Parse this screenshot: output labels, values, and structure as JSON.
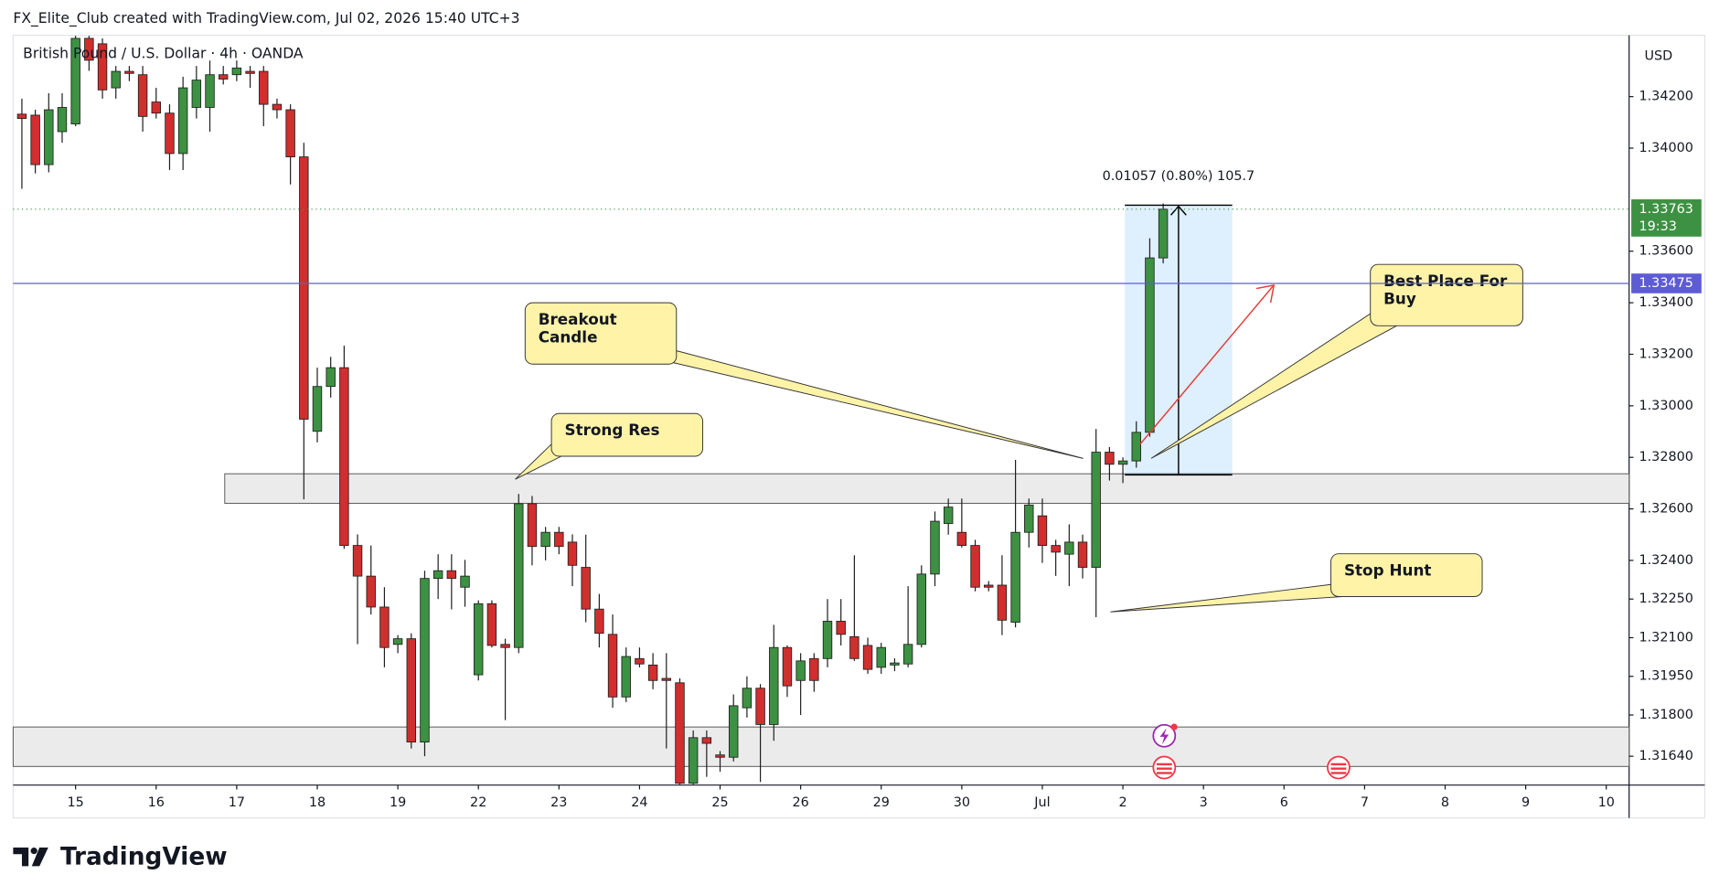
{
  "header": {
    "credit": "FX_Elite_Club created with TradingView.com, Jul 02, 2026 15:40 UTC+3"
  },
  "footer": {
    "logo": "TradingView"
  },
  "chart_data": {
    "type": "candlestick",
    "title": "British Pound / U.S. Dollar · 4h · OANDA",
    "currency": "USD",
    "up_color": "#3d9142",
    "down_color": "#d12e2e",
    "border_color": "#1e1e1e",
    "open": [
      1.34132,
      1.34128,
      1.33936,
      1.34064,
      1.34094,
      1.34426,
      1.34405,
      1.34234,
      1.34298,
      1.34285,
      1.34179,
      1.34136,
      1.33979,
      1.34158,
      1.34158,
      1.34285,
      1.34285,
      1.34298,
      1.34298,
      1.3417,
      1.34149,
      1.33966,
      1.32901,
      1.33075,
      1.33148,
      1.32458,
      1.32339,
      1.32219,
      1.32074,
      1.32096,
      1.31695,
      1.3233,
      1.3236,
      1.32296,
      1.31956,
      1.32232,
      1.32074,
      1.32062,
      1.3262,
      1.32454,
      1.32509,
      1.32471,
      1.32373,
      1.32211,
      1.32113,
      1.3187,
      1.32019,
      1.31994,
      1.31942,
      1.31925,
      1.31535,
      1.31712,
      1.31645,
      1.31636,
      1.31828,
      1.31904,
      1.31763,
      1.32062,
      1.31934,
      1.32019,
      1.32019,
      1.32164,
      1.32104,
      1.3207,
      1.31985,
      1.31994,
      1.31998,
      1.32074,
      1.32347,
      1.32543,
      1.32509,
      1.32458,
      1.32304,
      1.32304,
      1.3216,
      1.32509,
      1.32573,
      1.32458,
      1.32424,
      1.32471,
      1.32373,
      1.3282,
      1.32773,
      1.32786,
      1.32897,
      1.33574
    ],
    "high": [
      1.34192,
      1.34149,
      1.34213,
      1.34213,
      1.34436,
      1.34436,
      1.34426,
      1.34319,
      1.34319,
      1.34319,
      1.34234,
      1.3417,
      1.34277,
      1.34319,
      1.3434,
      1.34319,
      1.3434,
      1.34319,
      1.34319,
      1.34192,
      1.3417,
      1.34021,
      1.33148,
      1.3319,
      1.33233,
      1.32501,
      1.32458,
      1.32296,
      1.3211,
      1.32117,
      1.3236,
      1.32424,
      1.32424,
      1.32402,
      1.32245,
      1.32245,
      1.32096,
      1.32658,
      1.3265,
      1.3253,
      1.3253,
      1.32501,
      1.325,
      1.3227,
      1.3219,
      1.32062,
      1.32062,
      1.3204,
      1.3204,
      1.31942,
      1.3174,
      1.3174,
      1.3166,
      1.3188,
      1.3195,
      1.3192,
      1.3215,
      1.3207,
      1.3204,
      1.3204,
      1.3225,
      1.3225,
      1.3242,
      1.321,
      1.3208,
      1.3202,
      1.323,
      1.32381,
      1.3259,
      1.3264,
      1.3264,
      1.3248,
      1.3232,
      1.3242,
      1.3279,
      1.3264,
      1.3264,
      1.3248,
      1.3254,
      1.325,
      1.3291,
      1.3284,
      1.328,
      1.3294,
      1.3365,
      1.33785
    ],
    "low": [
      1.33842,
      1.33902,
      1.33906,
      1.34021,
      1.34085,
      1.343,
      1.34192,
      1.34192,
      1.3426,
      1.34064,
      1.34115,
      1.33915,
      1.33915,
      1.34115,
      1.34064,
      1.34247,
      1.3426,
      1.34234,
      1.34085,
      1.34115,
      1.33859,
      1.32637,
      1.32858,
      1.33032,
      1.32445,
      1.32075,
      1.3219,
      1.31985,
      1.3204,
      1.3167,
      1.3164,
      1.3225,
      1.3221,
      1.3222,
      1.31934,
      1.32062,
      1.3178,
      1.3204,
      1.32381,
      1.324,
      1.32424,
      1.323,
      1.3216,
      1.32062,
      1.31828,
      1.3185,
      1.31985,
      1.319,
      1.3167,
      1.3153,
      1.3153,
      1.3156,
      1.3158,
      1.3162,
      1.3179,
      1.3154,
      1.317,
      1.3187,
      1.318,
      1.3189,
      1.31985,
      1.3207,
      1.3201,
      1.3196,
      1.3196,
      1.3197,
      1.31985,
      1.32062,
      1.323,
      1.325,
      1.3245,
      1.3228,
      1.3228,
      1.3211,
      1.3214,
      1.3245,
      1.3239,
      1.3234,
      1.323,
      1.3233,
      1.3218,
      1.3271,
      1.327,
      1.3276,
      1.3288,
      1.33553
    ],
    "close": [
      1.34115,
      1.33936,
      1.34149,
      1.34158,
      1.34426,
      1.34341,
      1.34226,
      1.34298,
      1.3429,
      1.34123,
      1.34136,
      1.33979,
      1.34234,
      1.34264,
      1.34285,
      1.34268,
      1.34311,
      1.3429,
      1.3417,
      1.34149,
      1.33966,
      1.32948,
      1.33075,
      1.33148,
      1.32458,
      1.32339,
      1.32219,
      1.32062,
      1.32096,
      1.31695,
      1.3233,
      1.3236,
      1.3233,
      1.32339,
      1.32232,
      1.3207,
      1.32062,
      1.3262,
      1.32454,
      1.32509,
      1.32454,
      1.32381,
      1.32211,
      1.32117,
      1.3187,
      1.32027,
      1.31998,
      1.31934,
      1.31934,
      1.31535,
      1.31712,
      1.3169,
      1.31636,
      1.31836,
      1.31904,
      1.31763,
      1.32062,
      1.31913,
      1.3201,
      1.31934,
      1.32164,
      1.32113,
      1.32019,
      1.31977,
      1.32062,
      1.32002,
      1.32074,
      1.32347,
      1.32552,
      1.32607,
      1.32458,
      1.32296,
      1.32296,
      1.32168,
      1.32509,
      1.32615,
      1.32458,
      1.32432,
      1.32471,
      1.32373,
      1.3282,
      1.32773,
      1.32786,
      1.32897,
      1.33574,
      1.33763
    ],
    "ylim": [
      1.31528,
      1.34438
    ],
    "yticks": [
      {
        "value": 1.342,
        "label": "1.34200"
      },
      {
        "value": 1.34,
        "label": "1.34000"
      },
      {
        "value": 1.336,
        "label": "1.33600"
      },
      {
        "value": 1.334,
        "label": "1.33400"
      },
      {
        "value": 1.332,
        "label": "1.33200"
      },
      {
        "value": 1.33,
        "label": "1.33000"
      },
      {
        "value": 1.328,
        "label": "1.32800"
      },
      {
        "value": 1.326,
        "label": "1.32600"
      },
      {
        "value": 1.324,
        "label": "1.32400"
      },
      {
        "value": 1.3225,
        "label": "1.32250"
      },
      {
        "value": 1.321,
        "label": "1.32100"
      },
      {
        "value": 1.3195,
        "label": "1.31950"
      },
      {
        "value": 1.318,
        "label": "1.31800"
      },
      {
        "value": 1.3164,
        "label": "1.31640"
      }
    ],
    "xlim": [
      -0.65,
      119.7
    ],
    "xticks": [
      {
        "value": 4,
        "label": "15"
      },
      {
        "value": 10,
        "label": "16"
      },
      {
        "value": 16,
        "label": "17"
      },
      {
        "value": 22,
        "label": "18"
      },
      {
        "value": 28,
        "label": "19"
      },
      {
        "value": 34,
        "label": "22"
      },
      {
        "value": 40,
        "label": "23"
      },
      {
        "value": 46,
        "label": "24"
      },
      {
        "value": 52,
        "label": "25"
      },
      {
        "value": 58,
        "label": "26"
      },
      {
        "value": 64,
        "label": "29"
      },
      {
        "value": 70,
        "label": "30"
      },
      {
        "value": 76,
        "label": "Jul"
      },
      {
        "value": 82,
        "label": "2"
      },
      {
        "value": 88,
        "label": "3"
      },
      {
        "value": 94,
        "label": "6"
      },
      {
        "value": 100,
        "label": "7"
      },
      {
        "value": 106,
        "label": "8"
      },
      {
        "value": 112,
        "label": "9"
      },
      {
        "value": 118,
        "label": "10"
      }
    ],
    "last_price": 1.33763,
    "countdown": "19:33",
    "level": {
      "value": 1.33475,
      "label": "1.33475",
      "color": "#5e5bd6"
    },
    "measure": "0.01057 (0.80%) 105.7",
    "annotations": [
      "Breakout Candle",
      "Strong Res",
      "Best Place For Buy",
      "Stop Hunt"
    ]
  }
}
